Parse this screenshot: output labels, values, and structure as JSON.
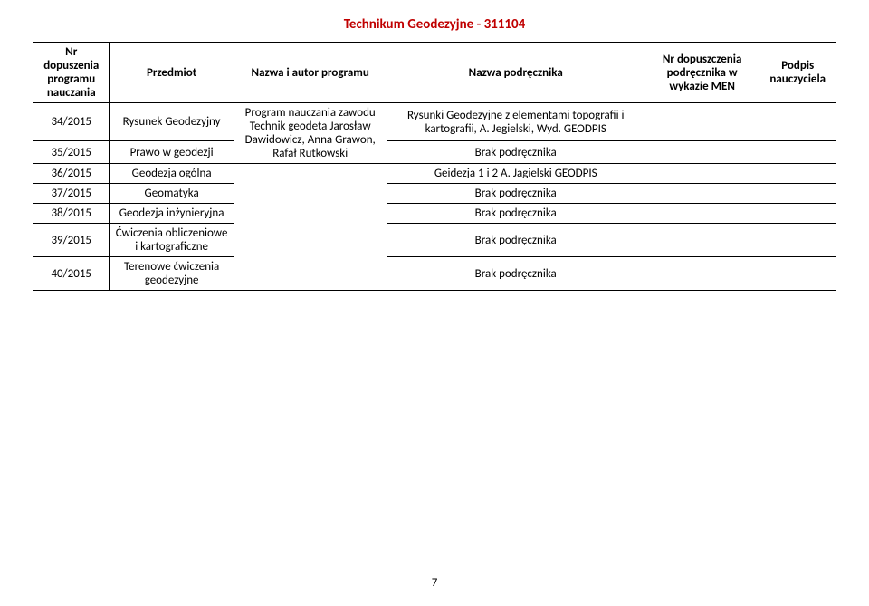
{
  "title_text": "Technikum Geodezyjne - 311104",
  "title_color": "#c00000",
  "page_number": "7",
  "table": {
    "columns": [
      "Nr dopuszenia programu nauczania",
      "Przedmiot",
      "Nazwa i autor programu",
      "Nazwa podręcznika",
      "Nr dopuszczenia podręcznika w wykazie MEN",
      "Podpis nauczyciela"
    ],
    "program_block": "Program nauczania zawodu Technik geodeta Jarosław Dawidowicz, Anna Grawon, Rafał Rutkowski",
    "rows": [
      {
        "nr": "34/2015",
        "subject": "Rysunek Geodezyjny",
        "textbook": "Rysunki Geodezyjne z elementami topografii i kartografii, A. Jegielski, Wyd. GEODPIS",
        "men": "",
        "sign": ""
      },
      {
        "nr": "35/2015",
        "subject": "Prawo w geodezji",
        "textbook": "Brak podręcznika",
        "men": "",
        "sign": ""
      },
      {
        "nr": "36/2015",
        "subject": "Geodezja ogólna",
        "textbook": "Geidezja 1 i  2 A. Jagielski GEODPIS",
        "men": "",
        "sign": ""
      },
      {
        "nr": "37/2015",
        "subject": "Geomatyka",
        "textbook": "Brak podręcznika",
        "men": "",
        "sign": ""
      },
      {
        "nr": "38/2015",
        "subject": "Geodezja inżynieryjna",
        "textbook": "Brak podręcznika",
        "men": "",
        "sign": ""
      },
      {
        "nr": "39/2015",
        "subject": "Ćwiczenia obliczeniowe i kartograficzne",
        "textbook": "Brak podręcznika",
        "men": "",
        "sign": ""
      },
      {
        "nr": "40/2015",
        "subject": "Terenowe ćwiczenia geodezyjne",
        "textbook": "Brak podręcznika",
        "men": "",
        "sign": ""
      }
    ]
  }
}
